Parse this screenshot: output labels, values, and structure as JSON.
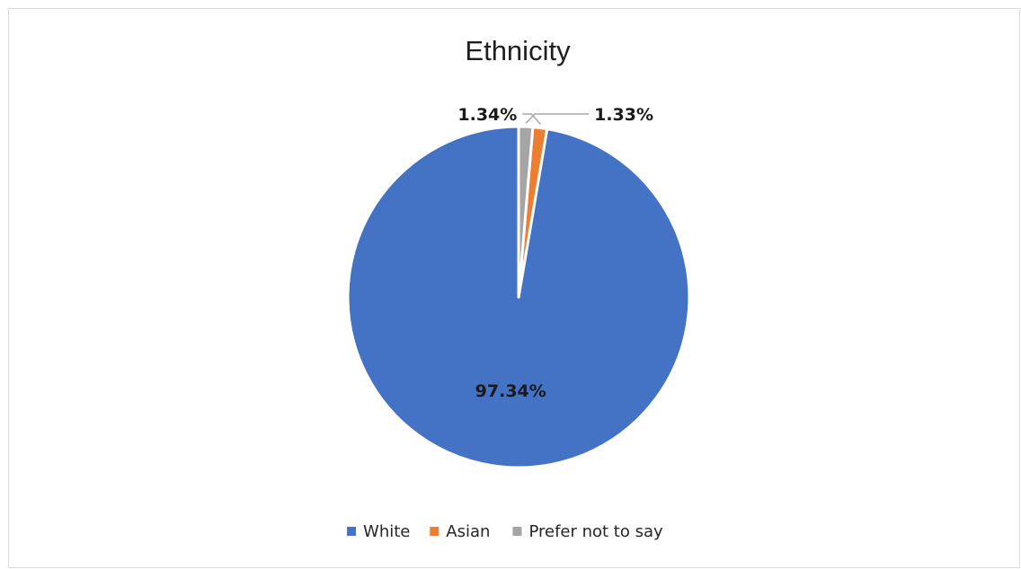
{
  "chart_data": {
    "type": "pie",
    "title": "Ethnicity",
    "categories": [
      "White",
      "Asian",
      "Prefer not to say"
    ],
    "values": [
      97.34,
      1.34,
      1.33
    ],
    "data_labels": [
      "97.34%",
      "1.34%",
      "1.33%"
    ],
    "colors": [
      "#4472c4",
      "#ed7d31",
      "#a5a5a5"
    ],
    "legend": {
      "position": "bottom",
      "entries": [
        "White",
        "Asian",
        "Prefer not to say"
      ]
    }
  }
}
